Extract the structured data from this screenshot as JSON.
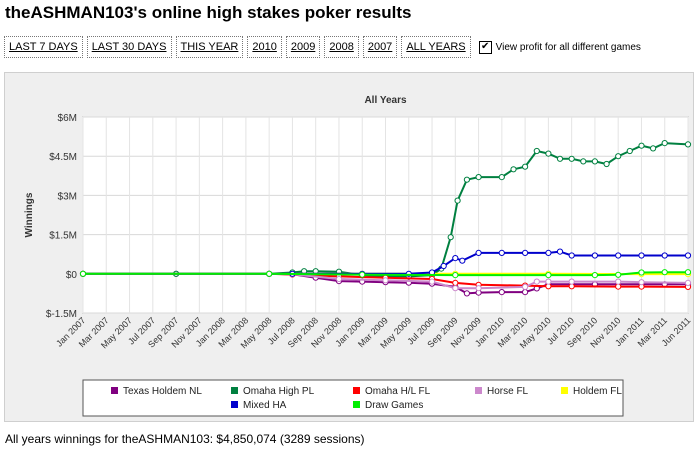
{
  "page": {
    "title": "theASHMAN103's online high stakes poker results",
    "filters": [
      "LAST 7 DAYS",
      "LAST 30 DAYS",
      "THIS YEAR",
      "2010",
      "2009",
      "2008",
      "2007",
      "ALL YEARS"
    ],
    "checkbox_label": "View profit for all different games",
    "checkbox_checked": true,
    "footer": "All years winnings for theASHMAN103: $4,850,074 (3289 sessions)"
  },
  "chart_data": {
    "type": "line",
    "title": "All Years",
    "xlabel": "",
    "ylabel": "Winnings",
    "ylim": [
      -1500000,
      6000000
    ],
    "yticks": [
      -1500000,
      0,
      1500000,
      3000000,
      4500000,
      6000000
    ],
    "ytick_labels": [
      "$-1.5M",
      "$0",
      "$1.5M",
      "$3M",
      "$4.5M",
      "$6M"
    ],
    "x_tick_labels": [
      "Jan 2007",
      "Mar 2007",
      "May 2007",
      "Jul 2007",
      "Sep 2007",
      "Nov 2007",
      "Jan 2008",
      "Mar 2008",
      "May 2008",
      "Jul 2008",
      "Sep 2008",
      "Nov 2008",
      "Jan 2009",
      "Mar 2009",
      "May 2009",
      "Jul 2009",
      "Sep 2009",
      "Nov 2009",
      "Jan 2010",
      "Mar 2010",
      "May 2010",
      "Jul 2010",
      "Sep 2010",
      "Nov 2010",
      "Jan 2011",
      "Mar 2011",
      "Jun 2011"
    ],
    "legend_position": "bottom",
    "grid": true,
    "series": [
      {
        "name": "Texas Holdem NL",
        "color": "#800080",
        "points": [
          [
            0,
            0
          ],
          [
            4,
            0
          ],
          [
            8,
            0
          ],
          [
            9,
            -20000
          ],
          [
            10,
            -150000
          ],
          [
            11,
            -280000
          ],
          [
            12,
            -300000
          ],
          [
            13,
            -320000
          ],
          [
            14,
            -340000
          ],
          [
            15,
            -380000
          ],
          [
            16,
            -500000
          ],
          [
            16.5,
            -750000
          ],
          [
            17,
            -720000
          ],
          [
            18,
            -700000
          ],
          [
            19,
            -700000
          ],
          [
            19.5,
            -560000
          ],
          [
            20,
            -400000
          ],
          [
            21,
            -400000
          ],
          [
            22,
            -400000
          ],
          [
            23,
            -400000
          ],
          [
            24,
            -400000
          ],
          [
            25,
            -400000
          ],
          [
            26,
            -400000
          ]
        ]
      },
      {
        "name": "Omaha High PL",
        "color": "#008040",
        "points": [
          [
            0,
            0
          ],
          [
            4,
            0
          ],
          [
            8,
            0
          ],
          [
            9,
            50000
          ],
          [
            9.5,
            100000
          ],
          [
            10,
            100000
          ],
          [
            11,
            80000
          ],
          [
            12,
            -50000
          ],
          [
            13,
            -100000
          ],
          [
            14,
            -100000
          ],
          [
            15,
            -50000
          ],
          [
            15.4,
            200000
          ],
          [
            15.8,
            1400000
          ],
          [
            16.1,
            2800000
          ],
          [
            16.5,
            3600000
          ],
          [
            17,
            3700000
          ],
          [
            18,
            3700000
          ],
          [
            18.5,
            4000000
          ],
          [
            19,
            4100000
          ],
          [
            19.5,
            4700000
          ],
          [
            20,
            4600000
          ],
          [
            20.5,
            4400000
          ],
          [
            21,
            4400000
          ],
          [
            21.5,
            4300000
          ],
          [
            22,
            4300000
          ],
          [
            22.5,
            4200000
          ],
          [
            23,
            4500000
          ],
          [
            23.5,
            4700000
          ],
          [
            24,
            4900000
          ],
          [
            24.5,
            4800000
          ],
          [
            25,
            5000000
          ],
          [
            26,
            4950000
          ]
        ]
      },
      {
        "name": "Omaha H/L FL",
        "color": "#ff0000",
        "points": [
          [
            0,
            0
          ],
          [
            8,
            0
          ],
          [
            9,
            -30000
          ],
          [
            11,
            -100000
          ],
          [
            13,
            -150000
          ],
          [
            15,
            -200000
          ],
          [
            16,
            -350000
          ],
          [
            17,
            -420000
          ],
          [
            19,
            -450000
          ],
          [
            20,
            -480000
          ],
          [
            21,
            -480000
          ],
          [
            23,
            -490000
          ],
          [
            24,
            -490000
          ],
          [
            26,
            -500000
          ]
        ]
      },
      {
        "name": "Horse FL",
        "color": "#cc88cc",
        "points": [
          [
            0,
            0
          ],
          [
            8,
            0
          ],
          [
            9,
            -20000
          ],
          [
            11,
            -200000
          ],
          [
            13,
            -250000
          ],
          [
            15,
            -300000
          ],
          [
            16,
            -550000
          ],
          [
            17,
            -550000
          ],
          [
            19,
            -500000
          ],
          [
            19.5,
            -300000
          ],
          [
            20,
            -300000
          ],
          [
            21,
            -300000
          ],
          [
            23,
            -300000
          ],
          [
            24,
            -320000
          ],
          [
            26,
            -350000
          ]
        ]
      },
      {
        "name": "Holdem FL",
        "color": "#ffff00",
        "points": [
          [
            0,
            0
          ],
          [
            8,
            0
          ],
          [
            12,
            0
          ],
          [
            16,
            0
          ],
          [
            20,
            0
          ],
          [
            24,
            -10000
          ],
          [
            26,
            -10000
          ]
        ]
      },
      {
        "name": "Mixed HA",
        "color": "#0000cc",
        "points": [
          [
            0,
            0
          ],
          [
            8,
            0
          ],
          [
            9,
            0
          ],
          [
            12,
            0
          ],
          [
            14,
            0
          ],
          [
            15,
            50000
          ],
          [
            15.5,
            300000
          ],
          [
            16,
            600000
          ],
          [
            16.3,
            500000
          ],
          [
            17,
            800000
          ],
          [
            18,
            800000
          ],
          [
            19,
            800000
          ],
          [
            20,
            800000
          ],
          [
            20.5,
            850000
          ],
          [
            21,
            700000
          ],
          [
            22,
            700000
          ],
          [
            23,
            700000
          ],
          [
            24,
            700000
          ],
          [
            25,
            700000
          ],
          [
            26,
            700000
          ]
        ]
      },
      {
        "name": "Draw Games",
        "color": "#00ee00",
        "points": [
          [
            0,
            0
          ],
          [
            8,
            0
          ],
          [
            12,
            -30000
          ],
          [
            16,
            -50000
          ],
          [
            20,
            -50000
          ],
          [
            22,
            -50000
          ],
          [
            23,
            -40000
          ],
          [
            24,
            50000
          ],
          [
            25,
            60000
          ],
          [
            26,
            60000
          ]
        ]
      }
    ]
  }
}
